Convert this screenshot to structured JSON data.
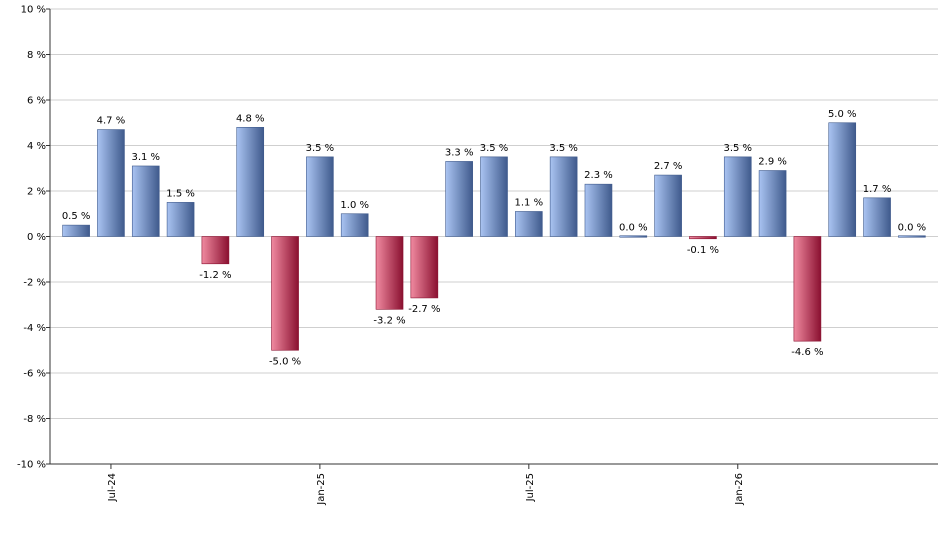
{
  "chart_data": {
    "type": "bar",
    "x": [
      "2024-06",
      "2024-07",
      "2024-08",
      "2024-09",
      "2024-10",
      "2024-11",
      "2024-12",
      "2025-01",
      "2025-02",
      "2025-03",
      "2025-04",
      "2025-05",
      "2025-06",
      "2025-07",
      "2025-08",
      "2025-09",
      "2025-10",
      "2025-11",
      "2025-12",
      "2026-01",
      "2026-02",
      "2026-03",
      "2026-04",
      "2026-05",
      "2026-06"
    ],
    "values": [
      0.5,
      4.7,
      3.1,
      1.5,
      -1.2,
      4.8,
      -5.0,
      3.5,
      1.0,
      -3.2,
      -2.7,
      3.3,
      3.5,
      1.1,
      3.5,
      2.3,
      0.0,
      2.7,
      -0.1,
      3.5,
      2.9,
      -4.6,
      5.0,
      1.7,
      0.0
    ],
    "data_labels": [
      "0.5 %",
      "4.7 %",
      "3.1 %",
      "1.5 %",
      "-1.2 %",
      "4.8 %",
      "-5.0 %",
      "3.5 %",
      "1.0 %",
      "-3.2 %",
      "-2.7 %",
      "3.3 %",
      "3.5 %",
      "1.1 %",
      "3.5 %",
      "2.3 %",
      "0.0 %",
      "2.7 %",
      "-0.1 %",
      "3.5 %",
      "2.9 %",
      "-4.6 %",
      "5.0 %",
      "1.7 %",
      "0.0 %"
    ],
    "x_tick_labels": [
      {
        "label": "Jul-24",
        "x": "2024-07"
      },
      {
        "label": "Jan-25",
        "x": "2025-01"
      },
      {
        "label": "Jul-25",
        "x": "2025-07"
      },
      {
        "label": "Jan-26",
        "x": "2026-01"
      }
    ],
    "y_ticks": [
      10,
      8,
      6,
      4,
      2,
      0,
      -2,
      -4,
      -6,
      -8,
      -10
    ],
    "y_tick_labels": [
      "10 %",
      "8 %",
      "6 %",
      "4 %",
      "2 %",
      "0 %",
      "-2 %",
      "-4 %",
      "-6 %",
      "-8 %",
      "-10 %"
    ],
    "ylim": [
      -10,
      10
    ],
    "grid": true,
    "colors": {
      "positive_light": "#aac4f2",
      "positive_dark": "#3f5a8c",
      "negative_light": "#f08aa0",
      "negative_dark": "#8a1030",
      "grid": "#cfcfcf",
      "axis": "#333333"
    },
    "title": "",
    "xlabel": "",
    "ylabel": ""
  }
}
